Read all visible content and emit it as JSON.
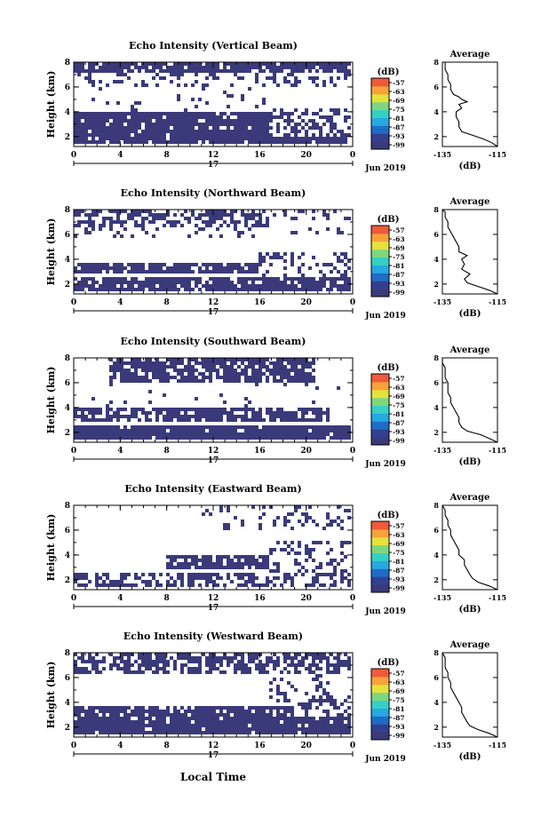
{
  "figure": {
    "xaxis_title": "Local Time",
    "date_label": "Jun 2019",
    "day_label": "17",
    "colorbar_unit": "(dB)",
    "colorbar_ticks": [
      "-57",
      "-63",
      "-69",
      "-75",
      "-81",
      "-87",
      "-93",
      "-99"
    ],
    "colorbar_colors": [
      "#3a3a7a",
      "#33408f",
      "#1f6cc7",
      "#26a9e0",
      "#35d0c4",
      "#7fd67f",
      "#e4e23c",
      "#f7a23a",
      "#ef5a3a"
    ],
    "profile_title": "Average",
    "profile_xlabel": "(dB)",
    "no_echo_color": "#ffffff",
    "echo_color": "#3a3a7a"
  },
  "chart_data": [
    {
      "type": "heatmap",
      "title": "Echo Intensity (Vertical Beam)",
      "ylabel": "Height (km)",
      "xlim": [
        0,
        24
      ],
      "ylim": [
        1.2,
        8
      ],
      "xticks": [
        "0",
        "4",
        "8",
        "12",
        "16",
        "20",
        "0"
      ],
      "yticks": [
        "2",
        "4",
        "6",
        "8"
      ],
      "cbar_range": [
        -99,
        -57
      ],
      "echo_bands": [
        {
          "x": [
            0,
            24
          ],
          "y": [
            7.0,
            8.0
          ],
          "coverage": 0.85
        },
        {
          "x": [
            0,
            24
          ],
          "y": [
            5.9,
            7.0
          ],
          "coverage": 0.25
        },
        {
          "x": [
            0,
            17
          ],
          "y": [
            4.0,
            5.8
          ],
          "coverage": 0.06
        },
        {
          "x": [
            0,
            17
          ],
          "y": [
            1.8,
            3.8
          ],
          "coverage": 0.92
        },
        {
          "x": [
            17,
            24
          ],
          "y": [
            1.8,
            4.3
          ],
          "coverage": 0.45
        },
        {
          "x": [
            0,
            24
          ],
          "y": [
            1.2,
            1.8
          ],
          "coverage": 0.95
        }
      ],
      "profile": {
        "xlim": [
          -135,
          -115
        ],
        "xticks": [
          "-135",
          "-115"
        ],
        "yticks": [
          "2",
          "4",
          "6",
          "8"
        ],
        "y": [
          1.2,
          1.5,
          1.8,
          2.1,
          2.4,
          2.8,
          3.2,
          3.6,
          4.0,
          4.3,
          4.6,
          4.8,
          5.0,
          5.2,
          5.4,
          5.8,
          6.2,
          6.6,
          7.0,
          7.4,
          7.8,
          8.0
        ],
        "x": [
          -115,
          -117,
          -120,
          -124,
          -128,
          -129,
          -129,
          -130,
          -130,
          -128,
          -129,
          -126,
          -128,
          -129,
          -131,
          -132,
          -132,
          -133,
          -133,
          -134,
          -134,
          -134
        ]
      }
    },
    {
      "type": "heatmap",
      "title": "Echo Intensity (Northward Beam)",
      "ylabel": "Height (km)",
      "xlim": [
        0,
        24
      ],
      "ylim": [
        1.2,
        8
      ],
      "xticks": [
        "0",
        "4",
        "8",
        "12",
        "16",
        "20",
        "0"
      ],
      "yticks": [
        "2",
        "4",
        "6",
        "8"
      ],
      "cbar_range": [
        -99,
        -57
      ],
      "echo_bands": [
        {
          "x": [
            0,
            17
          ],
          "y": [
            6.5,
            8.0
          ],
          "coverage": 0.55
        },
        {
          "x": [
            17,
            24
          ],
          "y": [
            7.2,
            8.0
          ],
          "coverage": 0.25
        },
        {
          "x": [
            0,
            24
          ],
          "y": [
            5.5,
            6.5
          ],
          "coverage": 0.12
        },
        {
          "x": [
            0,
            16
          ],
          "y": [
            2.6,
            3.6
          ],
          "coverage": 0.9
        },
        {
          "x": [
            16,
            24
          ],
          "y": [
            2.4,
            4.5
          ],
          "coverage": 0.35
        },
        {
          "x": [
            0,
            24
          ],
          "y": [
            1.2,
            2.4
          ],
          "coverage": 0.88
        }
      ],
      "profile": {
        "xlim": [
          -135,
          -115
        ],
        "xticks": [
          "-135",
          "-115"
        ],
        "yticks": [
          "2",
          "4",
          "6",
          "8"
        ],
        "y": [
          1.2,
          1.5,
          1.8,
          2.1,
          2.4,
          2.8,
          3.2,
          3.6,
          4.0,
          4.3,
          4.6,
          5.0,
          5.4,
          5.8,
          6.2,
          6.6,
          7.0,
          7.4,
          7.8,
          8.0
        ],
        "x": [
          -115,
          -118,
          -122,
          -126,
          -127,
          -125,
          -128,
          -127,
          -128,
          -126,
          -129,
          -129,
          -130,
          -131,
          -132,
          -133,
          -133,
          -134,
          -134,
          -135
        ]
      }
    },
    {
      "type": "heatmap",
      "title": "Echo Intensity (Southward Beam)",
      "ylabel": "Height (km)",
      "xlim": [
        0,
        24
      ],
      "ylim": [
        1.2,
        8
      ],
      "xticks": [
        "0",
        "4",
        "8",
        "12",
        "16",
        "20",
        "0"
      ],
      "yticks": [
        "2",
        "4",
        "6",
        "8"
      ],
      "cbar_range": [
        -99,
        -57
      ],
      "echo_bands": [
        {
          "x": [
            3,
            21
          ],
          "y": [
            5.8,
            8.0
          ],
          "coverage": 0.8
        },
        {
          "x": [
            0,
            24
          ],
          "y": [
            4.0,
            5.8
          ],
          "coverage": 0.05
        },
        {
          "x": [
            0,
            22
          ],
          "y": [
            2.8,
            3.9
          ],
          "coverage": 0.75
        },
        {
          "x": [
            0,
            24
          ],
          "y": [
            1.2,
            2.5
          ],
          "coverage": 0.95
        }
      ],
      "profile": {
        "xlim": [
          -135,
          -115
        ],
        "xticks": [
          "-135",
          "-115"
        ],
        "yticks": [
          "2",
          "4",
          "6",
          "8"
        ],
        "y": [
          1.2,
          1.5,
          1.8,
          2.1,
          2.4,
          2.8,
          3.2,
          3.6,
          4.0,
          4.4,
          4.8,
          5.2,
          5.6,
          6.0,
          6.4,
          6.8,
          7.2,
          7.6,
          8.0
        ],
        "x": [
          -115,
          -118,
          -121,
          -126,
          -128,
          -129,
          -129,
          -130,
          -131,
          -132,
          -132,
          -133,
          -133,
          -133,
          -134,
          -134,
          -134,
          -135,
          -135
        ]
      }
    },
    {
      "type": "heatmap",
      "title": "Echo Intensity (Eastward Beam)",
      "ylabel": "Height (km)",
      "xlim": [
        0,
        24
      ],
      "ylim": [
        1.2,
        8
      ],
      "xticks": [
        "0",
        "4",
        "8",
        "12",
        "16",
        "20",
        "0"
      ],
      "yticks": [
        "2",
        "4",
        "6",
        "8"
      ],
      "cbar_range": [
        -99,
        -57
      ],
      "echo_bands": [
        {
          "x": [
            11,
            24
          ],
          "y": [
            6.0,
            8.0
          ],
          "coverage": 0.22
        },
        {
          "x": [
            8,
            17
          ],
          "y": [
            2.7,
            4.0
          ],
          "coverage": 0.85
        },
        {
          "x": [
            17,
            24
          ],
          "y": [
            2.4,
            5.0
          ],
          "coverage": 0.3
        },
        {
          "x": [
            0,
            24
          ],
          "y": [
            1.2,
            2.5
          ],
          "coverage": 0.55
        }
      ],
      "profile": {
        "xlim": [
          -135,
          -115
        ],
        "xticks": [
          "-135",
          "-115"
        ],
        "yticks": [
          "2",
          "4",
          "6",
          "8"
        ],
        "y": [
          1.2,
          1.5,
          1.8,
          2.1,
          2.4,
          2.8,
          3.2,
          3.6,
          4.0,
          4.4,
          4.8,
          5.2,
          5.6,
          6.0,
          6.4,
          6.8,
          7.2,
          7.6,
          8.0
        ],
        "x": [
          -115,
          -118,
          -122,
          -124,
          -125,
          -126,
          -127,
          -127,
          -129,
          -129,
          -130,
          -131,
          -132,
          -132,
          -133,
          -133,
          -134,
          -134,
          -135
        ]
      }
    },
    {
      "type": "heatmap",
      "title": "Echo Intensity (Westward Beam)",
      "ylabel": "Height (km)",
      "xlim": [
        0,
        24
      ],
      "ylim": [
        1.2,
        8
      ],
      "xticks": [
        "0",
        "4",
        "8",
        "12",
        "16",
        "20",
        "0"
      ],
      "yticks": [
        "2",
        "4",
        "6",
        "8"
      ],
      "cbar_range": [
        -99,
        -57
      ],
      "echo_bands": [
        {
          "x": [
            0,
            24
          ],
          "y": [
            6.2,
            8.0
          ],
          "coverage": 0.6
        },
        {
          "x": [
            17,
            22
          ],
          "y": [
            4.0,
            6.2
          ],
          "coverage": 0.25
        },
        {
          "x": [
            0,
            19
          ],
          "y": [
            2.8,
            3.7
          ],
          "coverage": 0.88
        },
        {
          "x": [
            19,
            24
          ],
          "y": [
            2.4,
            4.5
          ],
          "coverage": 0.3
        },
        {
          "x": [
            0,
            24
          ],
          "y": [
            1.2,
            2.6
          ],
          "coverage": 0.93
        }
      ],
      "profile": {
        "xlim": [
          -135,
          -115
        ],
        "xticks": [
          "-135",
          "-115"
        ],
        "yticks": [
          "2",
          "4",
          "6",
          "8"
        ],
        "y": [
          1.2,
          1.5,
          1.8,
          2.1,
          2.4,
          2.8,
          3.2,
          3.6,
          4.0,
          4.4,
          4.8,
          5.2,
          5.6,
          6.0,
          6.4,
          6.8,
          7.2,
          7.6,
          8.0
        ],
        "x": [
          -115,
          -118,
          -122,
          -125,
          -126,
          -127,
          -128,
          -128,
          -129,
          -130,
          -131,
          -132,
          -132,
          -133,
          -133,
          -134,
          -134,
          -134,
          -135
        ]
      }
    }
  ]
}
